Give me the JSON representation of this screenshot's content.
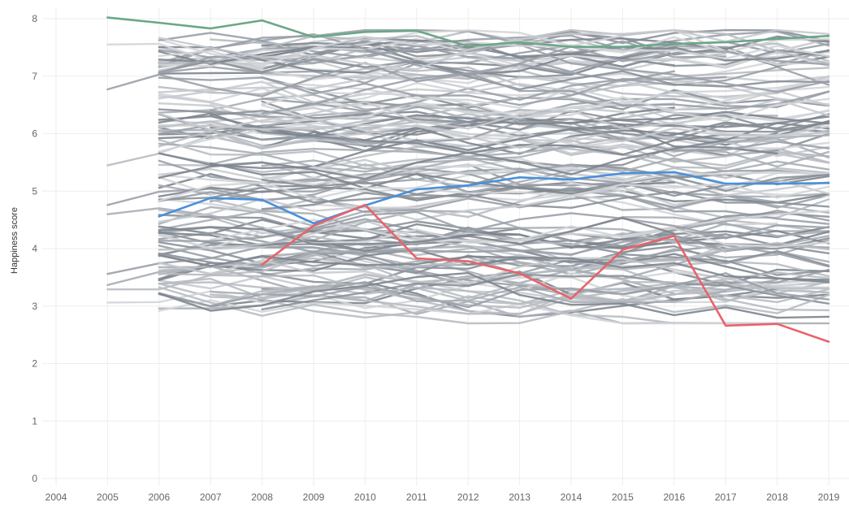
{
  "chart_data": {
    "type": "line",
    "title": "",
    "xlabel": "",
    "ylabel": "Happiness score",
    "x": [
      2004,
      2005,
      2006,
      2007,
      2008,
      2009,
      2010,
      2011,
      2012,
      2013,
      2014,
      2015,
      2016,
      2017,
      2018,
      2019
    ],
    "x_tick_labels": [
      "2004",
      "2005",
      "2006",
      "2007",
      "2008",
      "2009",
      "2010",
      "2011",
      "2012",
      "2013",
      "2014",
      "2015",
      "2016",
      "2017",
      "2018",
      "2019"
    ],
    "y_tick_labels": [
      "0",
      "1",
      "2",
      "3",
      "4",
      "5",
      "6",
      "7",
      "8"
    ],
    "xlim": [
      2004,
      2019
    ],
    "ylim": [
      0,
      8
    ],
    "grid": true,
    "legend": "none",
    "background_series_color": "#9aa0a8",
    "highlight_series": [
      {
        "color": "#6aa787",
        "points": [
          [
            2005,
            8.02
          ],
          [
            2006,
            7.93
          ],
          [
            2007,
            7.83
          ],
          [
            2008,
            7.97
          ],
          [
            2009,
            7.68
          ],
          [
            2010,
            7.77
          ],
          [
            2011,
            7.79
          ],
          [
            2012,
            7.52
          ],
          [
            2013,
            7.59
          ],
          [
            2014,
            7.51
          ],
          [
            2015,
            7.51
          ],
          [
            2016,
            7.56
          ],
          [
            2017,
            7.59
          ],
          [
            2018,
            7.65
          ],
          [
            2019,
            7.7
          ]
        ]
      },
      {
        "color": "#4a90d9",
        "points": [
          [
            2006,
            4.56
          ],
          [
            2007,
            4.88
          ],
          [
            2008,
            4.85
          ],
          [
            2009,
            4.44
          ],
          [
            2010,
            4.75
          ],
          [
            2011,
            5.03
          ],
          [
            2012,
            5.1
          ],
          [
            2013,
            5.24
          ],
          [
            2014,
            5.2
          ],
          [
            2015,
            5.31
          ],
          [
            2016,
            5.33
          ],
          [
            2017,
            5.13
          ],
          [
            2018,
            5.13
          ],
          [
            2019,
            5.14
          ]
        ]
      },
      {
        "color": "#e8636a",
        "points": [
          [
            2008,
            3.72
          ],
          [
            2009,
            4.4
          ],
          [
            2010,
            4.76
          ],
          [
            2011,
            3.83
          ],
          [
            2012,
            3.78
          ],
          [
            2013,
            3.57
          ],
          [
            2014,
            3.13
          ],
          [
            2015,
            3.98
          ],
          [
            2016,
            4.22
          ],
          [
            2017,
            2.66
          ],
          [
            2018,
            2.69
          ],
          [
            2019,
            2.38
          ]
        ]
      }
    ]
  }
}
